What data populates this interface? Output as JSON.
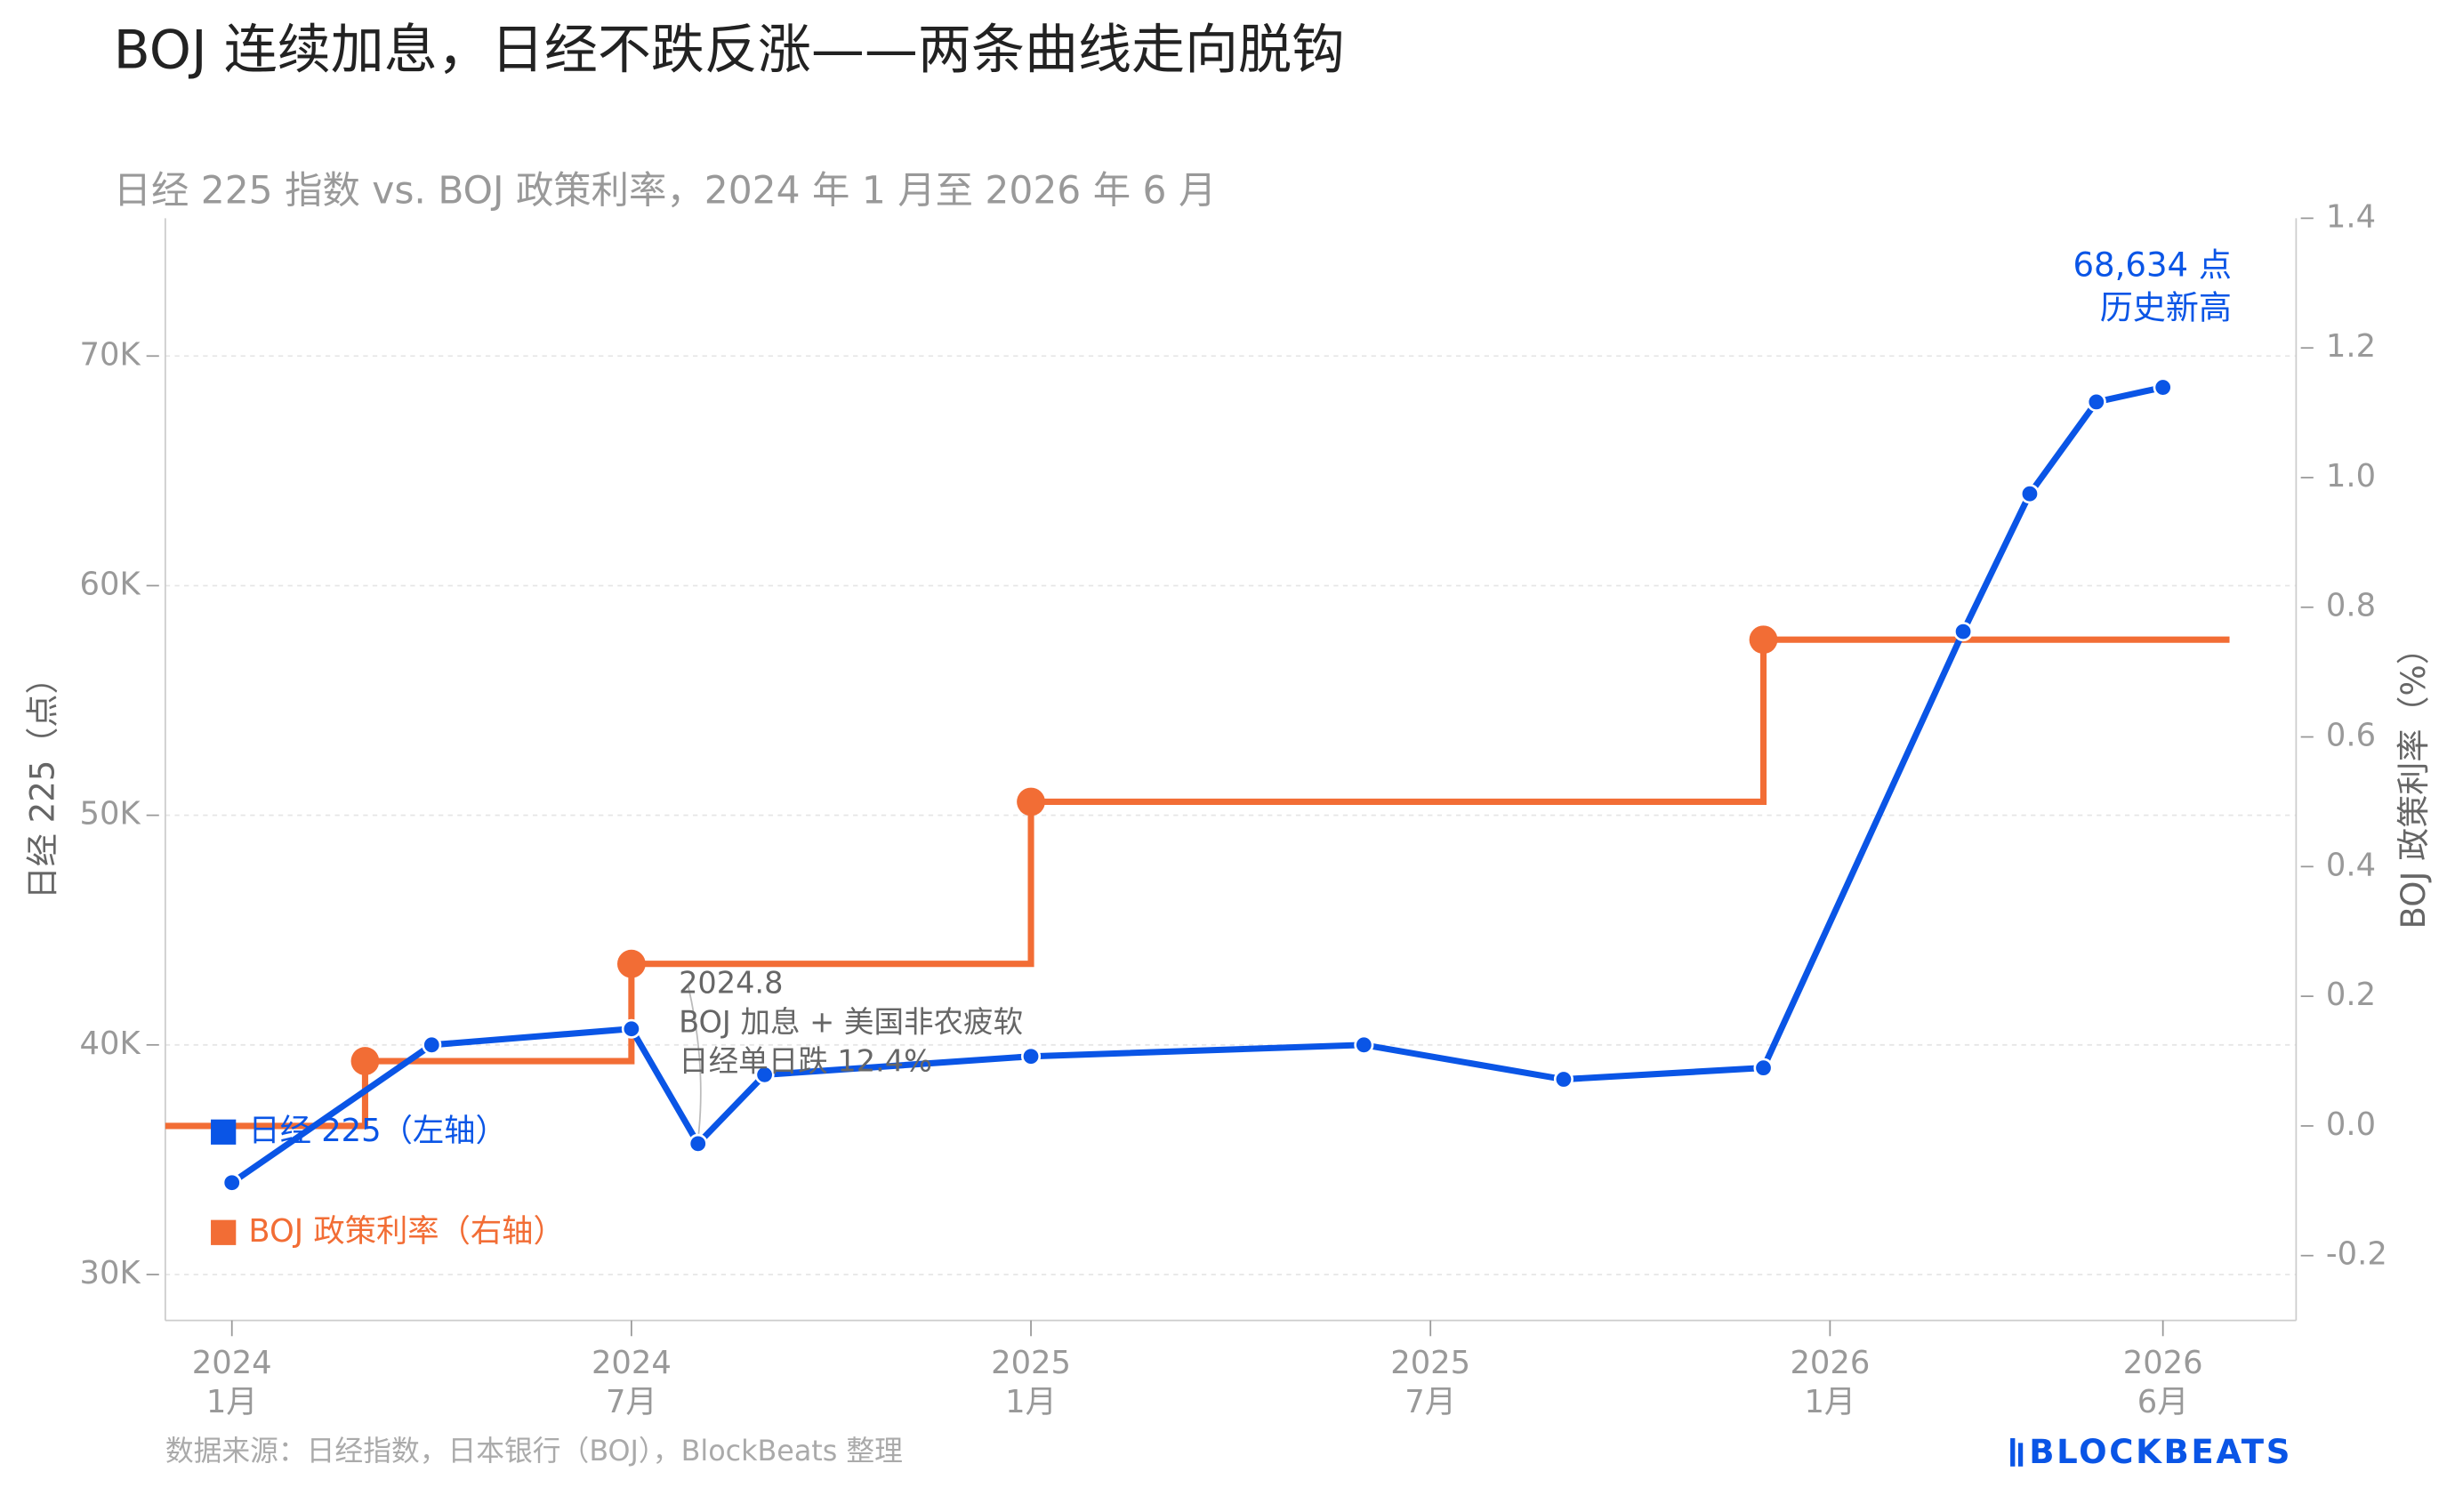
{
  "chart_data": {
    "type": "line",
    "title": "BOJ 连续加息，日经不跌反涨——两条曲线走向脱钩",
    "subtitle": "日经 225 指数 vs. BOJ 政策利率，2024 年 1 月至 2026 年 6 月",
    "y_label": "日经 225（点）",
    "y2_label": "BOJ 政策利率（%）",
    "xlim": [
      "2023-12",
      "2026-08"
    ],
    "xticks": [
      {
        "value": "2024-01",
        "label": [
          "2024",
          "1月"
        ]
      },
      {
        "value": "2024-07",
        "label": [
          "2024",
          "7月"
        ]
      },
      {
        "value": "2025-01",
        "label": [
          "2025",
          "1月"
        ]
      },
      {
        "value": "2025-07",
        "label": [
          "2025",
          "7月"
        ]
      },
      {
        "value": "2026-01",
        "label": [
          "2026",
          "1月"
        ]
      },
      {
        "value": "2026-06",
        "label": [
          "2026",
          "6月"
        ]
      }
    ],
    "ylim": [
      28000,
      76000
    ],
    "yticks": [
      {
        "value": 30000,
        "label": "30K"
      },
      {
        "value": 40000,
        "label": "40K"
      },
      {
        "value": 50000,
        "label": "50K"
      },
      {
        "value": 60000,
        "label": "60K"
      },
      {
        "value": 70000,
        "label": "70K"
      }
    ],
    "y2lim": [
      -0.3,
      1.4
    ],
    "y2ticks": [
      -0.2,
      {
        "value": 0,
        "label": "0.0"
      },
      0.2,
      0.4,
      0.6,
      0.8,
      {
        "value": 1,
        "label": "1.0"
      },
      1.2,
      1.4
    ],
    "grid": true,
    "legend": "lower left",
    "series": [
      {
        "name": "日经 225（左轴）",
        "color": "#0a55e6",
        "style": "line",
        "x": [
          "2024-01",
          "2024-04",
          "2024-07",
          "2024-08",
          "2024-09",
          "2025-01",
          "2025-06",
          "2025-09",
          "2025-12",
          "2026-03",
          "2026-04",
          "2026-05",
          "2026-06"
        ],
        "values": [
          34000,
          40000,
          40700,
          35700,
          38700,
          39500,
          40000,
          38500,
          39000,
          58000,
          64000,
          68000,
          68634
        ]
      },
      {
        "name": "BOJ 政策利率（右轴）",
        "color": "#f26d35",
        "style": "step",
        "axis": "y2",
        "x": [
          "2023-12",
          "2024-03",
          "2024-07",
          "2025-01",
          "2025-12",
          "2026-07"
        ],
        "values": [
          0,
          0.1,
          0.25,
          0.5,
          0.75,
          0.75
        ]
      }
    ],
    "annotations": [
      {
        "text": [
          "68,634 点",
          "历史新高"
        ],
        "color": "#0a55e6"
      },
      {
        "text": [
          "2024.8",
          "BOJ 加息 + 美国非农疲软",
          "日经单日跌 12.4%"
        ],
        "color": "#666666"
      }
    ],
    "source": "数据来源：日经指数，日本银行（BOJ），BlockBeats 整理",
    "logo": "BLOCKBEATS"
  }
}
